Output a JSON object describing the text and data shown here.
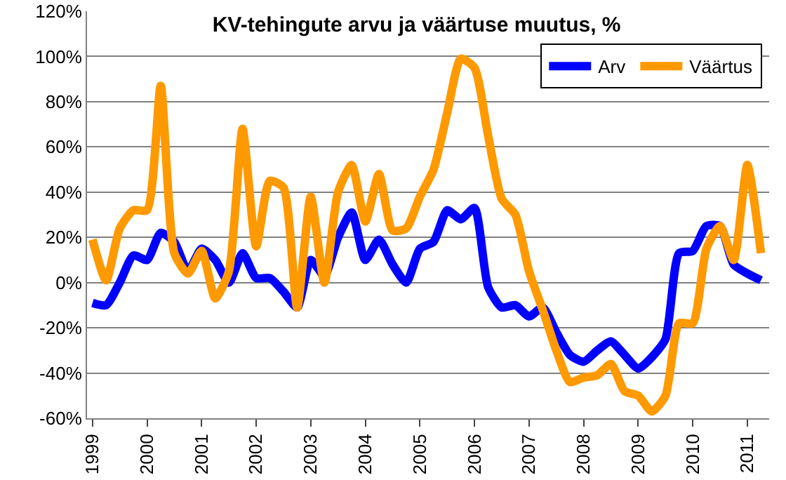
{
  "chart_data": {
    "type": "line",
    "title": "KV-tehingute arvu ja väärtuse muutus, %",
    "x": [
      1999,
      1999.25,
      1999.5,
      1999.75,
      2000,
      2000.25,
      2000.5,
      2000.75,
      2001,
      2001.25,
      2001.5,
      2001.75,
      2002,
      2002.25,
      2002.5,
      2002.75,
      2003,
      2003.25,
      2003.5,
      2003.75,
      2004,
      2004.25,
      2004.5,
      2004.75,
      2005,
      2005.25,
      2005.5,
      2005.75,
      2006,
      2006.25,
      2006.5,
      2006.75,
      2007,
      2007.25,
      2007.5,
      2007.75,
      2008,
      2008.25,
      2008.5,
      2008.75,
      2009,
      2009.25,
      2009.5,
      2009.75,
      2010,
      2010.25,
      2010.5,
      2010.75,
      2011,
      2011.25
    ],
    "series": [
      {
        "name": "Arv",
        "color": "#0000ff",
        "values": [
          -9,
          -10,
          0,
          12,
          10,
          22,
          18,
          5,
          15,
          10,
          0,
          13,
          2,
          2,
          -4,
          -11,
          10,
          3,
          20,
          31,
          10,
          19,
          8,
          0,
          15,
          18,
          32,
          28,
          33,
          -2,
          -11,
          -10,
          -15,
          -11,
          -22,
          -32,
          -35,
          -30,
          -26,
          -32,
          -38,
          -33,
          -25,
          13,
          14,
          25,
          25,
          8,
          4,
          1
        ]
      },
      {
        "name": "Väärtus",
        "color": "#ff9900",
        "values": [
          19,
          1,
          24,
          32,
          32,
          87,
          13,
          4,
          14,
          -7,
          5,
          68,
          16,
          45,
          42,
          -11,
          38,
          0,
          40,
          52,
          27,
          48,
          23,
          24,
          38,
          50,
          75,
          99,
          95,
          65,
          37,
          30,
          5,
          -12,
          -30,
          -44,
          -42,
          -41,
          -36,
          -48,
          -50,
          -57,
          -50,
          -18,
          -18,
          15,
          25,
          10,
          52,
          13
        ]
      }
    ],
    "xlim": [
      1998.9,
      2011.4
    ],
    "xticks": [
      1999,
      2000,
      2001,
      2002,
      2003,
      2004,
      2005,
      2006,
      2007,
      2008,
      2009,
      2010,
      2011
    ],
    "ylim": [
      -60,
      120
    ],
    "yticks": [
      {
        "value": -60,
        "label": "-60%"
      },
      {
        "value": -40,
        "label": "-40%"
      },
      {
        "value": -20,
        "label": "-20%"
      },
      {
        "value": 0,
        "label": "0%"
      },
      {
        "value": 20,
        "label": "20%"
      },
      {
        "value": 40,
        "label": "40%"
      },
      {
        "value": 60,
        "label": "60%"
      },
      {
        "value": 80,
        "label": "80%"
      },
      {
        "value": 100,
        "label": "100%"
      },
      {
        "value": 120,
        "label": "120%"
      }
    ],
    "grid": "y",
    "legend": "top right",
    "marker": "none",
    "line_style": "solid"
  }
}
